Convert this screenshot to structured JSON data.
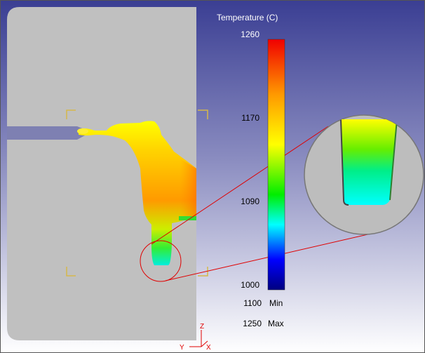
{
  "legend": {
    "title": "Temperature (C)",
    "ticks": [
      "1260",
      "1170",
      "1090",
      "1000"
    ],
    "min_value": "1100",
    "min_label": "Min",
    "max_value": "1250",
    "max_label": "Max"
  },
  "axes": {
    "z_label": "Z",
    "y_label": "Y",
    "x_label": "X"
  },
  "colors": {
    "background_top": "#3b3f94",
    "background_bottom": "#ffffff",
    "mold": "#c0c0c0",
    "runner": "#7e80b2",
    "highlight_circle": "#e00000",
    "bracket": "#d6b84a",
    "colorbar_stops": [
      "#f00000",
      "#ff9900",
      "#ffff00",
      "#00ee00",
      "#00ffff",
      "#0000ff",
      "#000080"
    ]
  }
}
